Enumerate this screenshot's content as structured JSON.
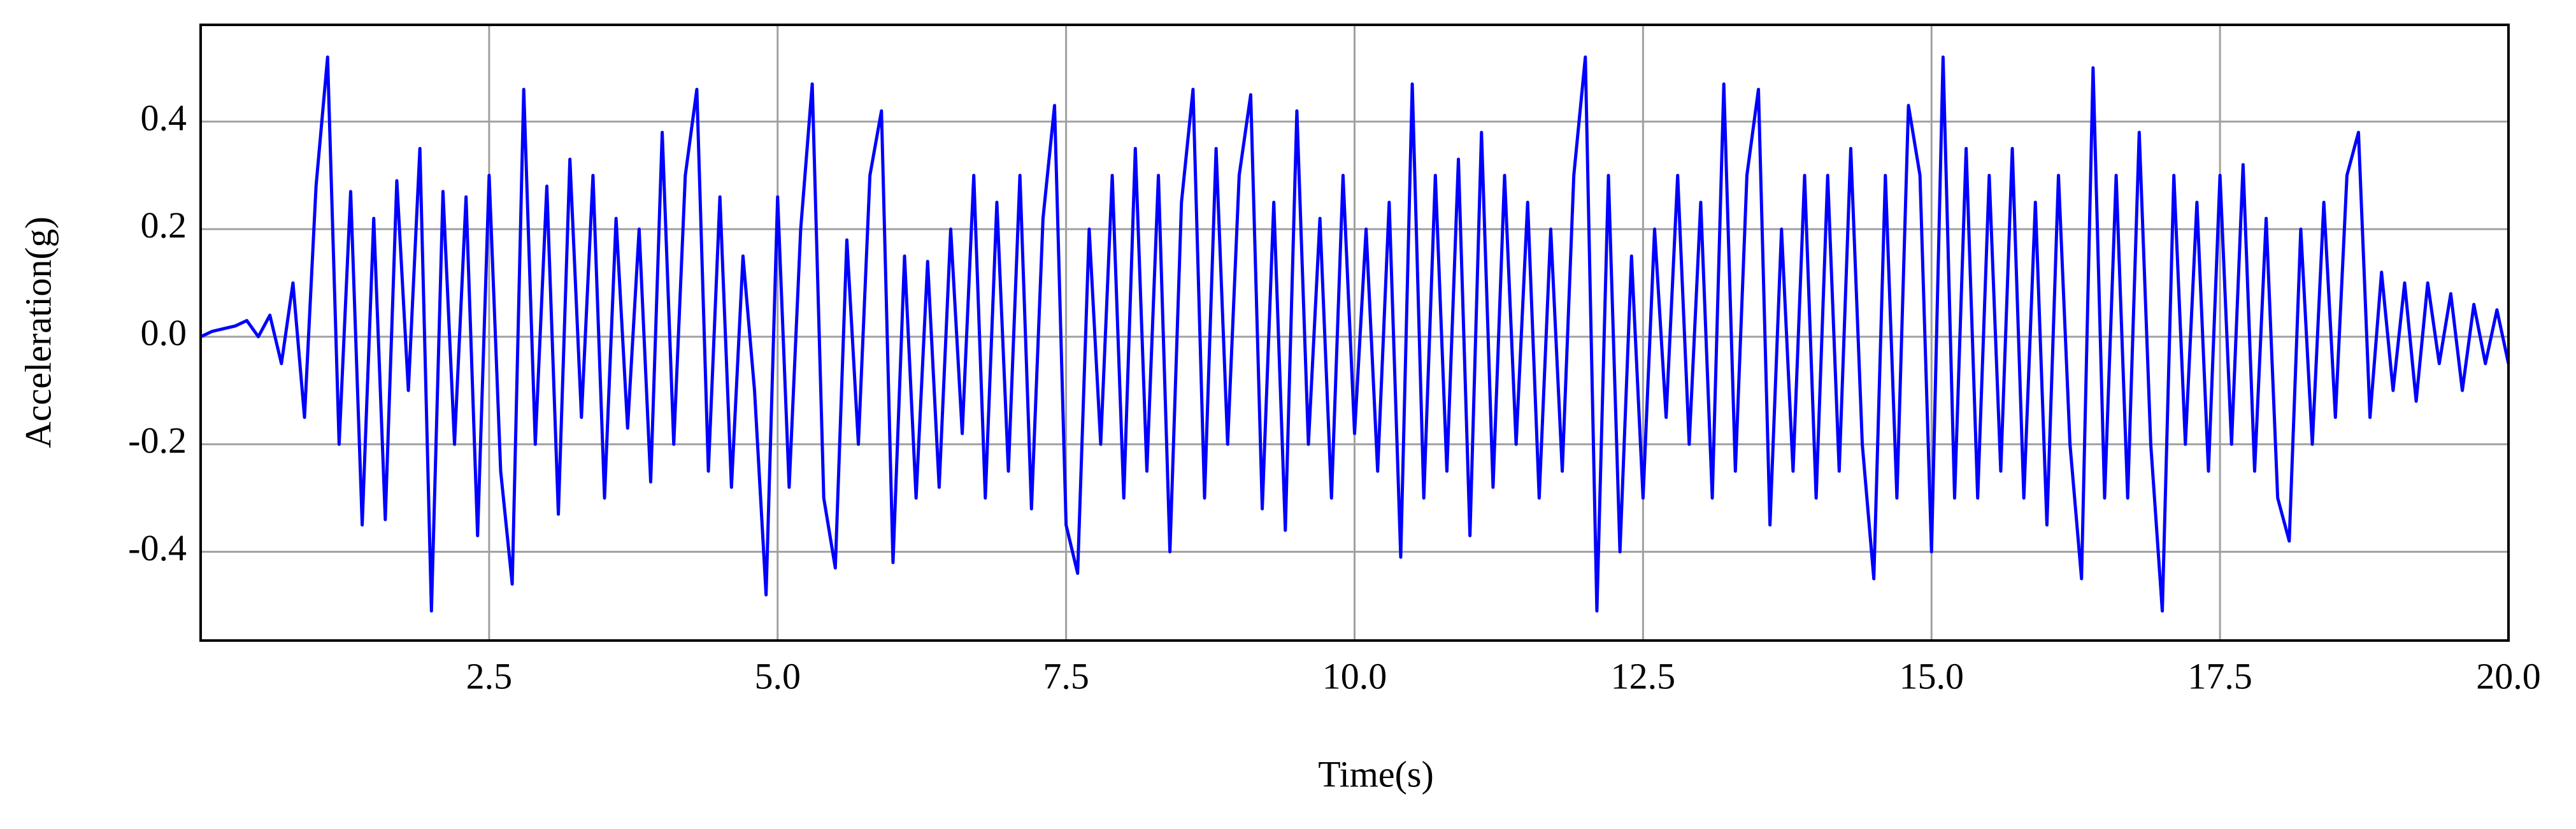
{
  "chart_data": {
    "type": "line",
    "xlabel": "Time(s)",
    "ylabel": "Acceleration(g)",
    "xlim": [
      0,
      20
    ],
    "ylim": [
      -0.565,
      0.58
    ],
    "xticks": [
      2.5,
      {
        "value": 5,
        "label": "5.0"
      },
      7.5,
      {
        "value": 10,
        "label": "10.0"
      },
      12.5,
      {
        "value": 15,
        "label": "15.0"
      },
      17.5,
      {
        "value": 20,
        "label": "20.0"
      }
    ],
    "yticks": [
      -0.4,
      -0.2,
      {
        "value": 0,
        "label": "0.0"
      },
      0.2,
      0.4
    ],
    "grid": true,
    "x": [
      0,
      0.1,
      0.2,
      0.3,
      0.4,
      0.5,
      0.6,
      0.7,
      0.8,
      0.9,
      1,
      1.1,
      1.2,
      1.3,
      1.4,
      1.5,
      1.6,
      1.7,
      1.8,
      1.9,
      2,
      2.1,
      2.2,
      2.3,
      2.4,
      2.5,
      2.6,
      2.7,
      2.8,
      2.9,
      3,
      3.1,
      3.2,
      3.3,
      3.4,
      3.5,
      3.6,
      3.7,
      3.8,
      3.9,
      4,
      4.1,
      4.2,
      4.3,
      4.4,
      4.5,
      4.6,
      4.7,
      4.8,
      4.9,
      5,
      5.1,
      5.2,
      5.3,
      5.4,
      5.5,
      5.6,
      5.7,
      5.8,
      5.9,
      6,
      6.1,
      6.2,
      6.3,
      6.4,
      6.5,
      6.6,
      6.7,
      6.8,
      6.9,
      7,
      7.1,
      7.2,
      7.3,
      7.4,
      7.5,
      7.6,
      7.7,
      7.8,
      7.9,
      8,
      8.1,
      8.2,
      8.3,
      8.4,
      8.5,
      8.6,
      8.7,
      8.8,
      8.9,
      9,
      9.1,
      9.2,
      9.3,
      9.4,
      9.5,
      9.6,
      9.7,
      9.8,
      9.9,
      10,
      10.1,
      10.2,
      10.3,
      10.4,
      10.5,
      10.6,
      10.7,
      10.8,
      10.9,
      11,
      11.1,
      11.2,
      11.3,
      11.4,
      11.5,
      11.6,
      11.7,
      11.8,
      11.9,
      12,
      12.1,
      12.2,
      12.3,
      12.4,
      12.5,
      12.6,
      12.7,
      12.8,
      12.9,
      13,
      13.1,
      13.2,
      13.3,
      13.4,
      13.5,
      13.6,
      13.7,
      13.8,
      13.9,
      14,
      14.1,
      14.2,
      14.3,
      14.4,
      14.5,
      14.6,
      14.7,
      14.8,
      14.9,
      15,
      15.1,
      15.2,
      15.3,
      15.4,
      15.5,
      15.6,
      15.7,
      15.8,
      15.9,
      16,
      16.1,
      16.2,
      16.3,
      16.4,
      16.5,
      16.6,
      16.7,
      16.8,
      16.9,
      17,
      17.1,
      17.2,
      17.3,
      17.4,
      17.5,
      17.6,
      17.7,
      17.8,
      17.9,
      18,
      18.1,
      18.2,
      18.3,
      18.4,
      18.5,
      18.6,
      18.7,
      18.8,
      18.9,
      19,
      19.1,
      19.2,
      19.3,
      19.4,
      19.5,
      19.6,
      19.7,
      19.8,
      19.9,
      20
    ],
    "series": [
      {
        "color": "#0000ff",
        "values": [
          0,
          0.01,
          0.015,
          0.02,
          0.03,
          0,
          0.04,
          -0.05,
          0.1,
          -0.15,
          0.28,
          0.52,
          -0.2,
          0.27,
          -0.35,
          0.22,
          -0.34,
          0.29,
          -0.1,
          0.35,
          -0.51,
          0.27,
          -0.2,
          0.26,
          -0.37,
          0.3,
          -0.25,
          -0.46,
          0.46,
          -0.2,
          0.28,
          -0.33,
          0.33,
          -0.15,
          0.3,
          -0.3,
          0.22,
          -0.17,
          0.2,
          -0.27,
          0.38,
          -0.2,
          0.3,
          0.46,
          -0.25,
          0.26,
          -0.28,
          0.15,
          -0.1,
          -0.48,
          0.26,
          -0.28,
          0.2,
          0.47,
          -0.3,
          -0.43,
          0.18,
          -0.2,
          0.3,
          0.42,
          -0.42,
          0.15,
          -0.3,
          0.14,
          -0.28,
          0.2,
          -0.18,
          0.3,
          -0.3,
          0.25,
          -0.25,
          0.3,
          -0.32,
          0.22,
          0.43,
          -0.35,
          -0.44,
          0.2,
          -0.2,
          0.3,
          -0.3,
          0.35,
          -0.25,
          0.3,
          -0.4,
          0.25,
          0.46,
          -0.3,
          0.35,
          -0.2,
          0.3,
          0.45,
          -0.32,
          0.25,
          -0.36,
          0.42,
          -0.2,
          0.22,
          -0.3,
          0.3,
          -0.18,
          0.2,
          -0.25,
          0.25,
          -0.41,
          0.47,
          -0.3,
          0.3,
          -0.25,
          0.33,
          -0.37,
          0.38,
          -0.28,
          0.3,
          -0.2,
          0.25,
          -0.3,
          0.2,
          -0.25,
          0.3,
          0.52,
          -0.51,
          0.3,
          -0.4,
          0.15,
          -0.3,
          0.2,
          -0.15,
          0.3,
          -0.2,
          0.25,
          -0.3,
          0.47,
          -0.25,
          0.3,
          0.46,
          -0.35,
          0.2,
          -0.25,
          0.3,
          -0.3,
          0.3,
          -0.25,
          0.35,
          -0.2,
          -0.45,
          0.3,
          -0.3,
          0.43,
          0.3,
          -0.4,
          0.52,
          -0.3,
          0.35,
          -0.3,
          0.3,
          -0.25,
          0.35,
          -0.3,
          0.25,
          -0.35,
          0.3,
          -0.2,
          -0.45,
          0.5,
          -0.3,
          0.3,
          -0.3,
          0.38,
          -0.2,
          -0.51,
          0.3,
          -0.2,
          0.25,
          -0.25,
          0.3,
          -0.2,
          0.32,
          -0.25,
          0.22,
          -0.3,
          -0.38,
          0.2,
          -0.2,
          0.25,
          -0.15,
          0.3,
          0.38,
          -0.15,
          0.12,
          -0.1,
          0.1,
          -0.12,
          0.1,
          -0.05,
          0.08,
          -0.1,
          0.06,
          -0.05,
          0.05,
          -0.05
        ]
      }
    ]
  }
}
